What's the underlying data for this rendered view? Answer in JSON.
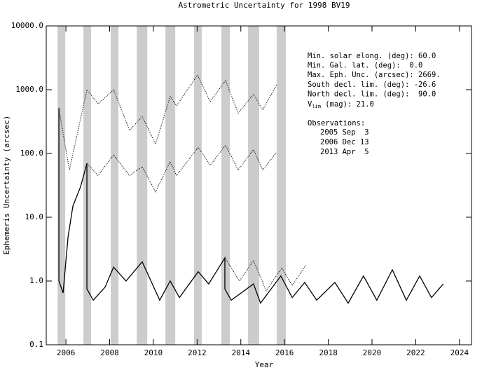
{
  "chart_data": {
    "type": "line",
    "title": "Astrometric Uncertainty for 1998 BV19",
    "xlabel": "Year",
    "ylabel": "Ephemeris Uncertainty (arcsec)",
    "log_y": true,
    "xlim": [
      2005.1,
      2024.55
    ],
    "ylim": [
      0.1,
      10000
    ],
    "xticks": [
      2006,
      2008,
      2010,
      2012,
      2014,
      2016,
      2018,
      2020,
      2022,
      2024
    ],
    "yticks": [
      {
        "value": 0.1,
        "label": "0.1"
      },
      {
        "value": 1,
        "label": "1.0"
      },
      {
        "value": 10,
        "label": "10.0"
      },
      {
        "value": 100,
        "label": "100.0"
      },
      {
        "value": 1000,
        "label": "1000.0"
      },
      {
        "value": 10000,
        "label": "10000.0"
      }
    ],
    "band_color": "#cccccc",
    "shaded_bands": [
      [
        2005.62,
        2005.97
      ],
      [
        2006.8,
        2007.15
      ],
      [
        2008.05,
        2008.4
      ],
      [
        2009.24,
        2009.72
      ],
      [
        2010.55,
        2011.0
      ],
      [
        2011.86,
        2012.21
      ],
      [
        2013.11,
        2013.5
      ],
      [
        2014.33,
        2014.84
      ],
      [
        2015.64,
        2016.06
      ]
    ],
    "series": [
      {
        "color": "#000000",
        "style": "dotted",
        "x": [
          2005.68,
          2006.16,
          2006.96,
          2007.47,
          2008.18,
          2008.91,
          2009.49,
          2010.1,
          2010.77,
          2011.06,
          2012.02,
          2012.6,
          2013.3,
          2013.88,
          2014.58,
          2015.0,
          2015.64
        ],
        "values": [
          500,
          55,
          1000,
          600,
          1000,
          230,
          380,
          140,
          780,
          560,
          1700,
          650,
          1400,
          430,
          850,
          480,
          1200
        ]
      },
      {
        "color": "#000000",
        "style": "dotted",
        "x": [
          2006.96,
          2007.47,
          2008.18,
          2008.91,
          2009.49,
          2010.1,
          2010.77,
          2011.06,
          2012.05,
          2012.6,
          2013.3,
          2013.88,
          2014.58,
          2015.0,
          2015.64
        ],
        "values": [
          70,
          45,
          95,
          45,
          62,
          25,
          75,
          45,
          125,
          65,
          135,
          55,
          115,
          55,
          105
        ]
      },
      {
        "color": "#000000",
        "style": "dotted",
        "x": [
          2013.27,
          2013.94,
          2014.58,
          2015.16,
          2015.87,
          2016.35,
          2016.99
        ],
        "values": [
          2.3,
          1.0,
          2.1,
          0.7,
          1.6,
          0.85,
          1.8
        ]
      },
      {
        "color": "#000000",
        "style": "solid",
        "x": [
          2005.68,
          2005.68,
          2005.87,
          2006.1,
          2006.32,
          2006.67,
          2006.96,
          2006.96,
          2007.25,
          2007.79,
          2008.18,
          2008.75,
          2009.49,
          2010.29,
          2010.77,
          2011.19,
          2012.05,
          2012.53,
          2013.27,
          2013.27,
          2013.56,
          2014.58,
          2014.9,
          2015.83,
          2016.35,
          2016.92,
          2017.47,
          2018.3,
          2018.91,
          2019.61,
          2020.22,
          2020.93,
          2021.57,
          2022.18,
          2022.72,
          2023.26
        ],
        "values": [
          520,
          1.0,
          0.65,
          5,
          15,
          30,
          70,
          0.75,
          0.5,
          0.8,
          1.65,
          1.0,
          2.0,
          0.5,
          1.0,
          0.55,
          1.4,
          0.9,
          2.3,
          0.75,
          0.5,
          0.9,
          0.45,
          1.2,
          0.55,
          0.95,
          0.5,
          0.95,
          0.45,
          1.2,
          0.5,
          1.5,
          0.5,
          1.2,
          0.55,
          0.9
        ]
      }
    ],
    "annotations": [
      "Min. solar elong. (deg): 60.0",
      "Min. Gal. lat. (deg):  0.0",
      "Max. Eph. Unc. (arcsec): 2669.",
      "South decl. lim. (deg): -26.6",
      "North decl. lim. (deg):  90.0"
    ],
    "vlim": {
      "symbol": "V",
      "subscript": "lim",
      "text": " (mag): 21.0"
    },
    "observations": {
      "title": "Observations:",
      "dates": [
        "2005 Sep  3",
        "2006 Dec 13",
        "2013 Apr  5"
      ]
    }
  }
}
